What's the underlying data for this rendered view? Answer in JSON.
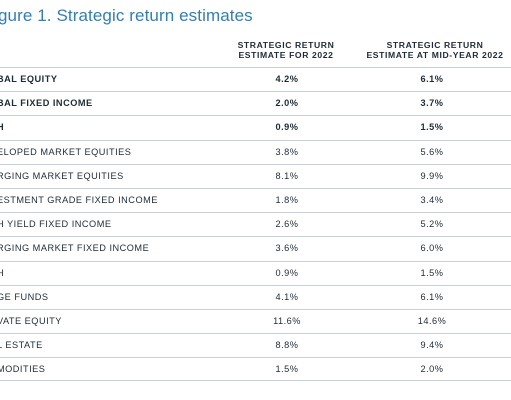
{
  "figure": {
    "title": "gure 1. Strategic return estimates"
  },
  "table": {
    "headers": [
      {
        "line1": "STRATEGIC RETURN",
        "line2": "ESTIMATE FOR 2022"
      },
      {
        "line1": "STRATEGIC RETURN",
        "line2": "ESTIMATE AT MID-YEAR 2022"
      }
    ],
    "rows": [
      {
        "label": "BAL EQUITY",
        "est_2022": "4.2%",
        "est_mid_2022": "6.1%",
        "bold": true
      },
      {
        "label": "BAL FIXED INCOME",
        "est_2022": "2.0%",
        "est_mid_2022": "3.7%",
        "bold": true
      },
      {
        "label": "H",
        "est_2022": "0.9%",
        "est_mid_2022": "1.5%",
        "bold": true
      },
      {
        "label": "ELOPED MARKET EQUITIES",
        "est_2022": "3.8%",
        "est_mid_2022": "5.6%",
        "bold": false
      },
      {
        "label": "RGING MARKET EQUITIES",
        "est_2022": "8.1%",
        "est_mid_2022": "9.9%",
        "bold": false
      },
      {
        "label": "ESTMENT GRADE FIXED INCOME",
        "est_2022": "1.8%",
        "est_mid_2022": "3.4%",
        "bold": false
      },
      {
        "label": "H YIELD FIXED INCOME",
        "est_2022": "2.6%",
        "est_mid_2022": "5.2%",
        "bold": false
      },
      {
        "label": "RGING MARKET FIXED INCOME",
        "est_2022": "3.6%",
        "est_mid_2022": "6.0%",
        "bold": false
      },
      {
        "label": "H",
        "est_2022": "0.9%",
        "est_mid_2022": "1.5%",
        "bold": false
      },
      {
        "label": "GE FUNDS",
        "est_2022": "4.1%",
        "est_mid_2022": "6.1%",
        "bold": false
      },
      {
        "label": "VATE EQUITY",
        "est_2022": "11.6%",
        "est_mid_2022": "14.6%",
        "bold": false
      },
      {
        "label": "L ESTATE",
        "est_2022": "8.8%",
        "est_mid_2022": "9.4%",
        "bold": false
      },
      {
        "label": "MODITIES",
        "est_2022": "1.5%",
        "est_mid_2022": "2.0%",
        "bold": false
      }
    ]
  },
  "colors": {
    "title": "#2f7fb5",
    "text": "#1f2a36",
    "rule": "#c9cfd6"
  }
}
